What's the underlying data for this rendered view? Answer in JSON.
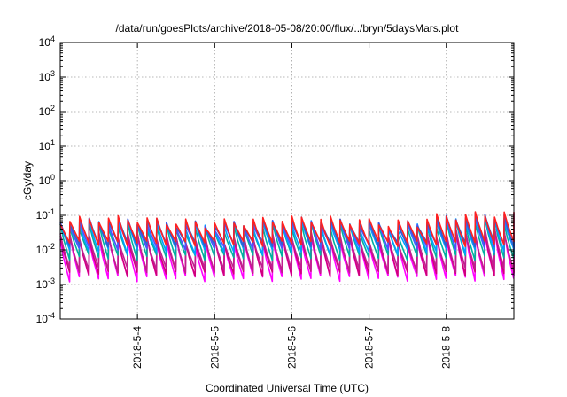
{
  "chart_data": {
    "type": "line",
    "title": "/data/run/goesPlots/archive/2018-05-08/20:00/flux/../bryn/5daysMars.plot",
    "xlabel": "Coordinated Universal Time (UTC)",
    "ylabel": "cGy/day",
    "yscale": "log",
    "ylim": [
      0.0001,
      10000
    ],
    "y_tick_base": "10",
    "y_tick_exponents": [
      "-4",
      "-3",
      "-2",
      "-1",
      "0",
      "1",
      "2",
      "3",
      "4"
    ],
    "xlim": [
      "2018-05-03T00:00",
      "2018-05-08T21:00"
    ],
    "x_ticks": [
      "2018-5-4",
      "2018-5-5",
      "2018-5-6",
      "2018-5-7",
      "2018-5-8"
    ],
    "x_tick_dates": [
      "2018-05-04T00:00",
      "2018-05-05T00:00",
      "2018-05-06T00:00",
      "2018-05-07T00:00",
      "2018-05-08T00:00"
    ],
    "grid": true,
    "cycle_hours": 3,
    "series": [
      {
        "color": "#ff00ff",
        "peak": 0.02,
        "trough": 0.0015
      },
      {
        "color": "#d0007c",
        "peak": 0.022,
        "trough": 0.002
      },
      {
        "color": "#c0208f",
        "peak": 0.024,
        "trough": 0.0025
      },
      {
        "color": "#00b0a0",
        "peak": 0.045,
        "trough": 0.006
      },
      {
        "color": "#00a0ff",
        "peak": 0.055,
        "trough": 0.009
      },
      {
        "color": "#5050ff",
        "peak": 0.06,
        "trough": 0.012
      },
      {
        "color": "#3060d0",
        "peak": 0.065,
        "trough": 0.014
      },
      {
        "color": "#ff2020",
        "peak": 0.07,
        "trough": 0.015
      }
    ]
  }
}
